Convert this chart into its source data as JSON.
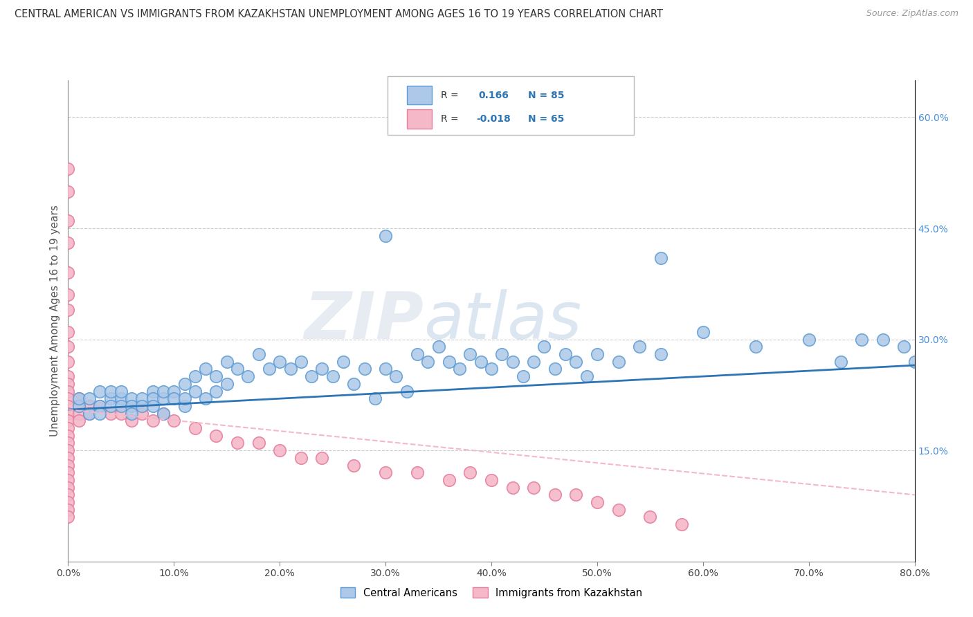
{
  "title": "CENTRAL AMERICAN VS IMMIGRANTS FROM KAZAKHSTAN UNEMPLOYMENT AMONG AGES 16 TO 19 YEARS CORRELATION CHART",
  "source": "Source: ZipAtlas.com",
  "ylabel": "Unemployment Among Ages 16 to 19 years",
  "xlim": [
    0.0,
    0.8
  ],
  "ylim": [
    0.0,
    0.65
  ],
  "xticks": [
    0.0,
    0.1,
    0.2,
    0.3,
    0.4,
    0.5,
    0.6,
    0.7,
    0.8
  ],
  "xticklabels": [
    "0.0%",
    "10.0%",
    "20.0%",
    "30.0%",
    "40.0%",
    "50.0%",
    "60.0%",
    "70.0%",
    "80.0%"
  ],
  "ytick_positions": [
    0.15,
    0.3,
    0.45,
    0.6
  ],
  "yticklabels": [
    "15.0%",
    "30.0%",
    "45.0%",
    "60.0%"
  ],
  "legend_labels": [
    "Central Americans",
    "Immigrants from Kazakhstan"
  ],
  "blue_color": "#adc8e8",
  "blue_edge": "#5b9bd5",
  "pink_color": "#f4b8c8",
  "pink_edge": "#e87fa0",
  "trend_blue": "#2e75b6",
  "trend_pink": "#f4b8c8",
  "R_blue": 0.166,
  "N_blue": 85,
  "R_pink": -0.018,
  "N_pink": 65,
  "blue_x": [
    0.01,
    0.01,
    0.02,
    0.02,
    0.03,
    0.03,
    0.03,
    0.04,
    0.04,
    0.04,
    0.05,
    0.05,
    0.05,
    0.06,
    0.06,
    0.06,
    0.07,
    0.07,
    0.08,
    0.08,
    0.08,
    0.09,
    0.09,
    0.09,
    0.1,
    0.1,
    0.11,
    0.11,
    0.11,
    0.12,
    0.12,
    0.13,
    0.13,
    0.14,
    0.14,
    0.15,
    0.15,
    0.16,
    0.17,
    0.18,
    0.19,
    0.2,
    0.21,
    0.22,
    0.23,
    0.24,
    0.25,
    0.26,
    0.27,
    0.28,
    0.29,
    0.3,
    0.31,
    0.32,
    0.33,
    0.34,
    0.35,
    0.36,
    0.37,
    0.38,
    0.39,
    0.4,
    0.41,
    0.42,
    0.43,
    0.44,
    0.45,
    0.46,
    0.47,
    0.48,
    0.49,
    0.5,
    0.52,
    0.54,
    0.56,
    0.6,
    0.65,
    0.7,
    0.73,
    0.75,
    0.77,
    0.79,
    0.8,
    0.56,
    0.3
  ],
  "blue_y": [
    0.21,
    0.22,
    0.2,
    0.22,
    0.21,
    0.23,
    0.2,
    0.22,
    0.21,
    0.23,
    0.22,
    0.21,
    0.23,
    0.22,
    0.21,
    0.2,
    0.22,
    0.21,
    0.23,
    0.22,
    0.21,
    0.22,
    0.23,
    0.2,
    0.23,
    0.22,
    0.21,
    0.24,
    0.22,
    0.25,
    0.23,
    0.26,
    0.22,
    0.25,
    0.23,
    0.27,
    0.24,
    0.26,
    0.25,
    0.28,
    0.26,
    0.27,
    0.26,
    0.27,
    0.25,
    0.26,
    0.25,
    0.27,
    0.24,
    0.26,
    0.22,
    0.26,
    0.25,
    0.23,
    0.28,
    0.27,
    0.29,
    0.27,
    0.26,
    0.28,
    0.27,
    0.26,
    0.28,
    0.27,
    0.25,
    0.27,
    0.29,
    0.26,
    0.28,
    0.27,
    0.25,
    0.28,
    0.27,
    0.29,
    0.28,
    0.31,
    0.29,
    0.3,
    0.27,
    0.3,
    0.3,
    0.29,
    0.27,
    0.41,
    0.44
  ],
  "pink_x": [
    0.0,
    0.0,
    0.0,
    0.0,
    0.0,
    0.0,
    0.0,
    0.0,
    0.0,
    0.0,
    0.0,
    0.0,
    0.0,
    0.0,
    0.0,
    0.0,
    0.0,
    0.0,
    0.0,
    0.0,
    0.0,
    0.0,
    0.0,
    0.0,
    0.0,
    0.0,
    0.0,
    0.0,
    0.0,
    0.0,
    0.01,
    0.01,
    0.01,
    0.01,
    0.02,
    0.02,
    0.03,
    0.04,
    0.05,
    0.06,
    0.07,
    0.08,
    0.09,
    0.1,
    0.12,
    0.14,
    0.16,
    0.18,
    0.2,
    0.22,
    0.24,
    0.27,
    0.3,
    0.33,
    0.36,
    0.38,
    0.4,
    0.42,
    0.44,
    0.46,
    0.48,
    0.5,
    0.52,
    0.55,
    0.58
  ],
  "pink_y": [
    0.53,
    0.5,
    0.46,
    0.43,
    0.39,
    0.36,
    0.34,
    0.31,
    0.29,
    0.27,
    0.25,
    0.24,
    0.23,
    0.22,
    0.21,
    0.2,
    0.19,
    0.18,
    0.17,
    0.16,
    0.15,
    0.14,
    0.13,
    0.12,
    0.11,
    0.1,
    0.09,
    0.08,
    0.07,
    0.06,
    0.22,
    0.21,
    0.2,
    0.19,
    0.21,
    0.2,
    0.21,
    0.2,
    0.2,
    0.19,
    0.2,
    0.19,
    0.2,
    0.19,
    0.18,
    0.17,
    0.16,
    0.16,
    0.15,
    0.14,
    0.14,
    0.13,
    0.12,
    0.12,
    0.11,
    0.12,
    0.11,
    0.1,
    0.1,
    0.09,
    0.09,
    0.08,
    0.07,
    0.06,
    0.05
  ],
  "watermark_zip": "ZIP",
  "watermark_atlas": "atlas",
  "bg_color": "#ffffff",
  "grid_color": "#cccccc"
}
